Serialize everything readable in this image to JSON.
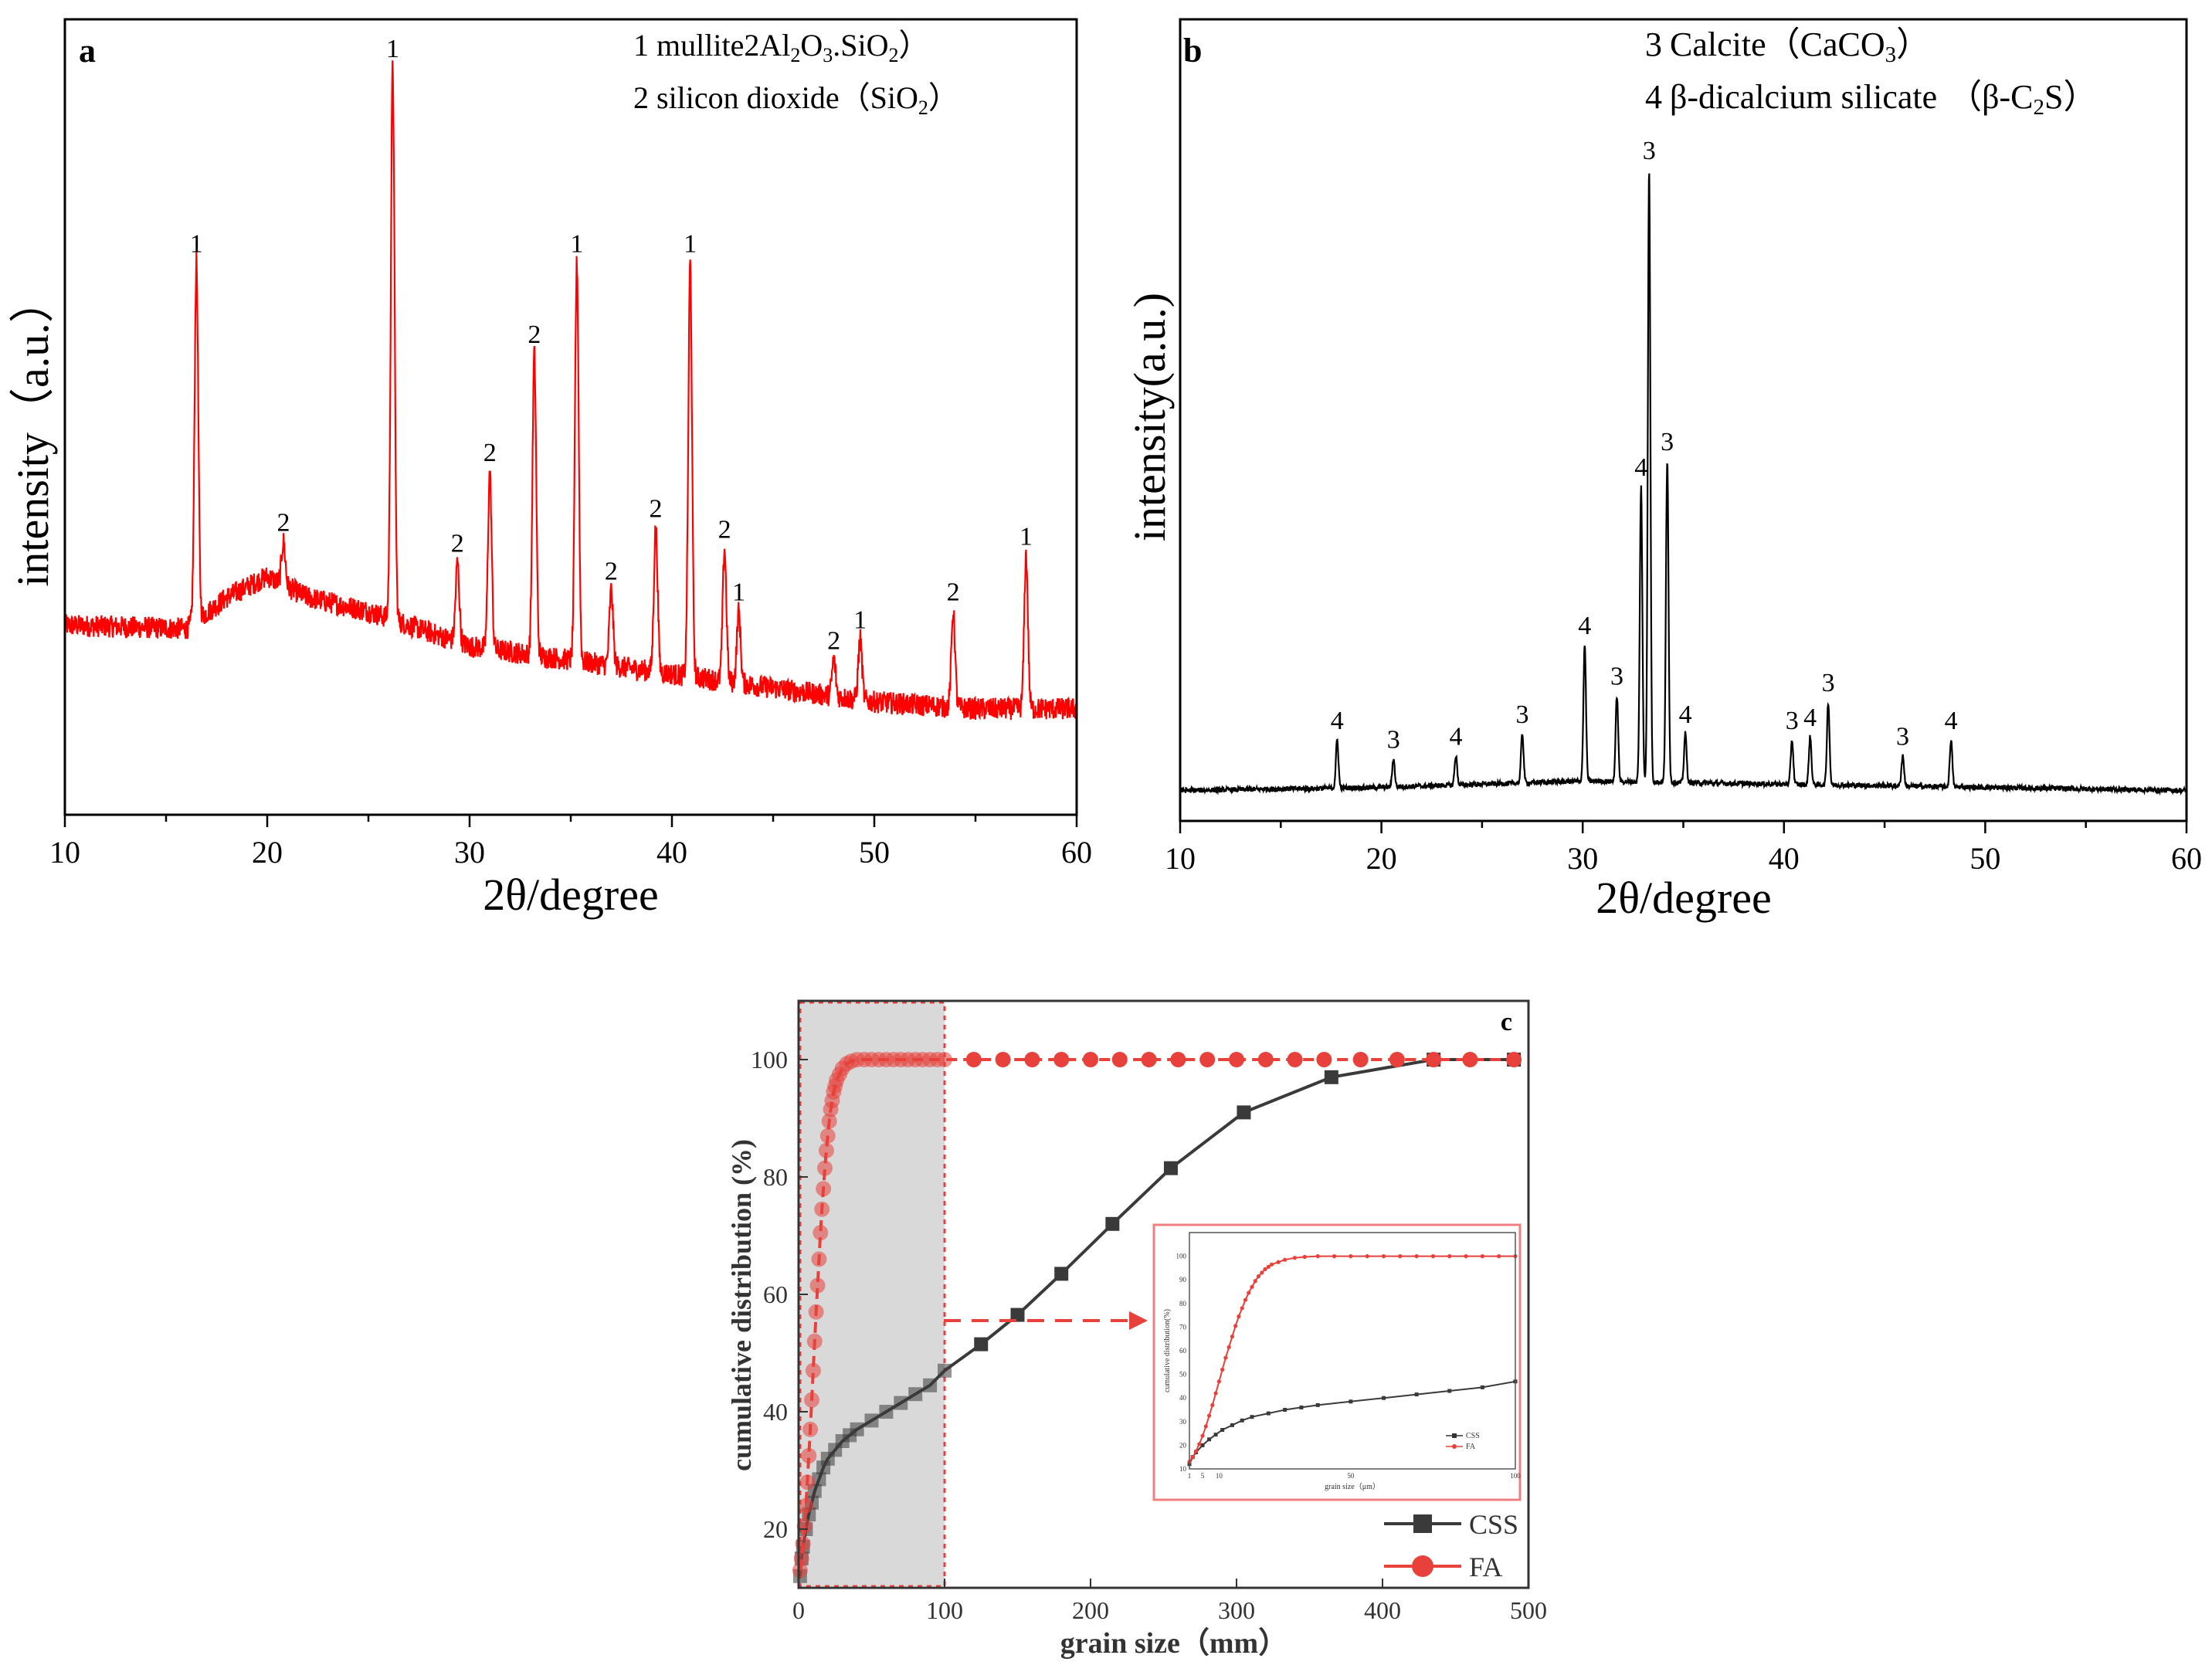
{
  "chart_data": [
    {
      "id": "a",
      "type": "line",
      "panel_label": "a",
      "xlabel": "2θ/degree",
      "ylabel": "intensity（a.u.）",
      "xlim": [
        10,
        60
      ],
      "ylim": [
        0,
        100
      ],
      "x_ticks": [
        "10",
        "20",
        "30",
        "40",
        "50",
        "60"
      ],
      "legend": [
        {
          "num": "1",
          "name": "mullite（2Al",
          "formula": [
            [
              "2Al",
              false
            ],
            [
              "2",
              true
            ],
            [
              "O",
              false
            ],
            [
              "3",
              true
            ],
            [
              ".SiO",
              false
            ],
            [
              "2",
              true
            ],
            [
              "）",
              false
            ]
          ]
        },
        {
          "num": "2",
          "name": "silicon dioxide",
          "formula": [
            [
              "（SiO",
              false
            ],
            [
              "2",
              true
            ],
            [
              "）",
              false
            ]
          ]
        }
      ],
      "line_color": "#ff0000",
      "baseline": [
        [
          10,
          20
        ],
        [
          16,
          19.5
        ],
        [
          18,
          24
        ],
        [
          20,
          27
        ],
        [
          22,
          24
        ],
        [
          25,
          22
        ],
        [
          30,
          17
        ],
        [
          35,
          15
        ],
        [
          40,
          13
        ],
        [
          45,
          11
        ],
        [
          50,
          9
        ],
        [
          55,
          8
        ],
        [
          60,
          8
        ]
      ],
      "peaks": [
        {
          "x": 16.5,
          "y": 72,
          "label": "1"
        },
        {
          "x": 20.8,
          "y": 32,
          "label": "2"
        },
        {
          "x": 26.2,
          "y": 100,
          "label": "1"
        },
        {
          "x": 29.4,
          "y": 29,
          "label": "2"
        },
        {
          "x": 31.0,
          "y": 42,
          "label": "2"
        },
        {
          "x": 33.2,
          "y": 59,
          "label": "2"
        },
        {
          "x": 35.3,
          "y": 72,
          "label": "1"
        },
        {
          "x": 37.0,
          "y": 25,
          "label": "2"
        },
        {
          "x": 39.2,
          "y": 34,
          "label": "2"
        },
        {
          "x": 40.9,
          "y": 72,
          "label": "1"
        },
        {
          "x": 42.6,
          "y": 31,
          "label": "2"
        },
        {
          "x": 43.3,
          "y": 22,
          "label": "1"
        },
        {
          "x": 48.0,
          "y": 15,
          "label": "2"
        },
        {
          "x": 49.3,
          "y": 18,
          "label": "1"
        },
        {
          "x": 53.9,
          "y": 22,
          "label": "2"
        },
        {
          "x": 57.5,
          "y": 30,
          "label": "1"
        }
      ]
    },
    {
      "id": "b",
      "type": "line",
      "panel_label": "b",
      "xlabel": "2θ/degree",
      "ylabel": "intensity(a.u.)",
      "xlim": [
        10,
        60
      ],
      "ylim": [
        0,
        100
      ],
      "x_ticks": [
        "10",
        "20",
        "30",
        "40",
        "50",
        "60"
      ],
      "legend": [
        {
          "num": "3",
          "name": "Calcite",
          "formula": [
            [
              "（CaCO",
              false
            ],
            [
              "3",
              true
            ],
            [
              "）",
              false
            ]
          ]
        },
        {
          "num": "4",
          "name": "β-dicalcium silicate",
          "formula": [
            [
              "（β-C",
              false
            ],
            [
              "2",
              true
            ],
            [
              "S）",
              false
            ]
          ]
        }
      ],
      "line_color": "#000000",
      "baseline": [
        [
          10,
          2
        ],
        [
          20,
          2.5
        ],
        [
          30,
          3.5
        ],
        [
          40,
          3
        ],
        [
          50,
          2.5
        ],
        [
          60,
          2
        ]
      ],
      "peaks": [
        {
          "x": 17.8,
          "y": 10,
          "label": "4"
        },
        {
          "x": 20.6,
          "y": 7,
          "label": "3"
        },
        {
          "x": 23.7,
          "y": 7.5,
          "label": "4"
        },
        {
          "x": 27.0,
          "y": 11,
          "label": "3"
        },
        {
          "x": 30.1,
          "y": 25,
          "label": "4"
        },
        {
          "x": 31.7,
          "y": 17,
          "label": "3"
        },
        {
          "x": 32.9,
          "y": 50,
          "label": "4"
        },
        {
          "x": 33.3,
          "y": 100,
          "label": "3"
        },
        {
          "x": 34.2,
          "y": 54,
          "label": "3"
        },
        {
          "x": 35.1,
          "y": 11,
          "label": "4"
        },
        {
          "x": 40.4,
          "y": 10,
          "label": "3"
        },
        {
          "x": 41.3,
          "y": 10.5,
          "label": "4"
        },
        {
          "x": 42.2,
          "y": 16,
          "label": "3"
        },
        {
          "x": 45.9,
          "y": 7.5,
          "label": "3"
        },
        {
          "x": 48.3,
          "y": 10,
          "label": "4"
        }
      ]
    },
    {
      "id": "c",
      "type": "line",
      "panel_label": "c",
      "xlabel": "grain size（mm）",
      "ylabel": "cumulative distribution (%)",
      "xlim": [
        0,
        500
      ],
      "ylim": [
        10,
        110
      ],
      "x_ticks": [
        "0",
        "100",
        "200",
        "300",
        "400",
        "500"
      ],
      "y_ticks": [
        "20",
        "40",
        "60",
        "80",
        "100"
      ],
      "highlight_range": [
        0,
        100
      ],
      "series": [
        {
          "name": "CSS",
          "color": "#3a3a3a",
          "marker": "square",
          "x": [
            1,
            2,
            3,
            5,
            7,
            9,
            11,
            14,
            17,
            20,
            25,
            30,
            35,
            40,
            50,
            60,
            70,
            80,
            90,
            100,
            125,
            150,
            180,
            215,
            255,
            305,
            365,
            435,
            490
          ],
          "y": [
            12,
            15,
            17,
            20,
            22.5,
            24.5,
            26.5,
            28.5,
            30.5,
            32,
            33.5,
            35,
            36,
            37,
            38.5,
            40,
            41.5,
            43,
            44.5,
            47,
            51.5,
            56.5,
            63.5,
            72,
            81.5,
            91,
            97,
            100,
            100
          ]
        },
        {
          "name": "FA",
          "color": "#e8403a",
          "marker": "circle",
          "x": [
            1,
            2,
            3,
            4,
            5,
            6,
            7,
            8,
            9,
            10,
            11,
            12,
            13,
            14,
            15,
            16,
            17,
            18,
            19,
            20,
            21,
            22,
            23,
            24,
            25,
            26,
            28,
            30,
            33,
            36,
            40,
            45,
            50,
            55,
            60,
            65,
            70,
            75,
            80,
            85,
            90,
            95,
            100,
            120,
            140,
            160,
            180,
            200,
            220,
            240,
            260,
            280,
            300,
            320,
            340,
            360,
            385,
            410,
            435,
            460,
            490
          ],
          "y": [
            13,
            15,
            17.5,
            20.5,
            24,
            28,
            32.5,
            37,
            42,
            47,
            52,
            57,
            61.5,
            66,
            70.5,
            74.5,
            78,
            81.5,
            84.5,
            87,
            89.5,
            91.5,
            93,
            94.5,
            95.5,
            96.5,
            97.5,
            98.5,
            99.3,
            99.7,
            100,
            100,
            100,
            100,
            100,
            100,
            100,
            100,
            100,
            100,
            100,
            100,
            100,
            100,
            100,
            100,
            100,
            100,
            100,
            100,
            100,
            100,
            100,
            100,
            100,
            100,
            100,
            100,
            100,
            100,
            100
          ]
        }
      ],
      "inset": {
        "xlabel": "grain size（μm）",
        "ylabel": "cumulative distribution(%)",
        "x_ticks": [
          "1",
          "5",
          "10",
          "50",
          "100"
        ],
        "y_ticks": [
          "10",
          "20",
          "30",
          "40",
          "50",
          "60",
          "70",
          "80",
          "90",
          "100"
        ],
        "legend": [
          "CSS",
          "FA"
        ]
      }
    }
  ]
}
